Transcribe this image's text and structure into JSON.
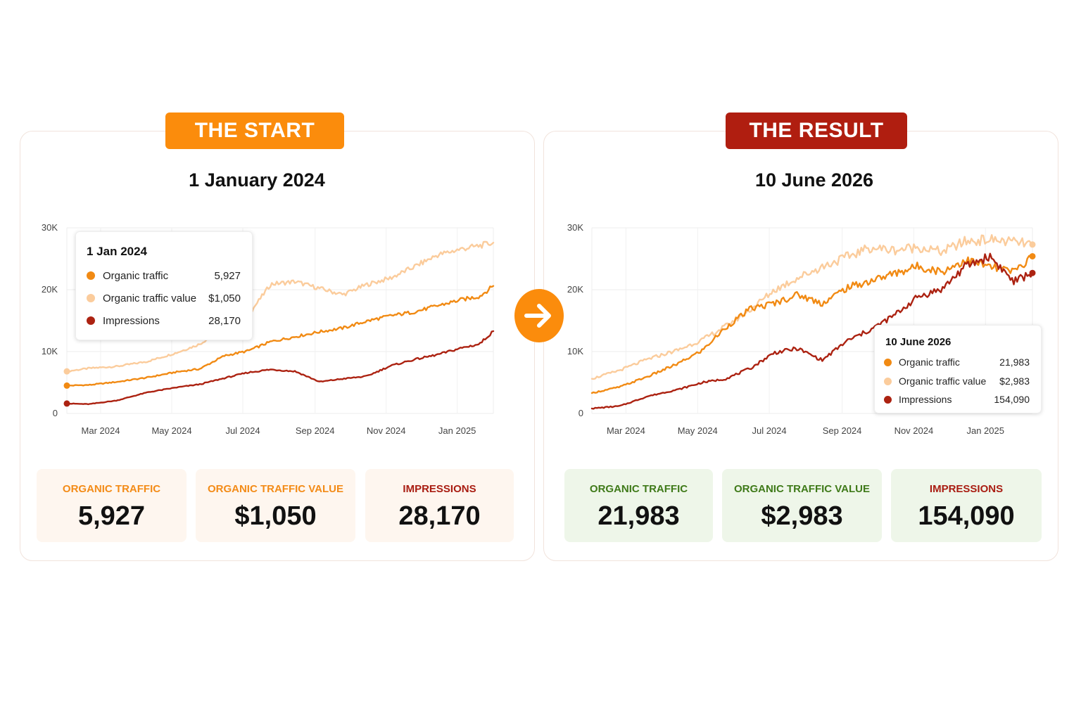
{
  "colors": {
    "organic_traffic": "#f18a13",
    "organic_traffic_value": "#fbcc9c",
    "impressions": "#ac2211",
    "start_accent": "#fb8c0c",
    "result_accent": "#b01e10",
    "start_label": "#f38b17",
    "start_impressions_label": "#a91d12",
    "result_label": "#3f7a19",
    "result_impressions_label": "#a91d12"
  },
  "start": {
    "banner": "THE START",
    "title": "1 January 2024",
    "tooltip": {
      "date": "1 Jan 2024",
      "rows": [
        {
          "label": "Organic traffic",
          "value": "5,927"
        },
        {
          "label": "Organic traffic value",
          "value": "$1,050"
        },
        {
          "label": "Impressions",
          "value": "28,170"
        }
      ]
    },
    "stats": [
      {
        "label": "ORGANIC TRAFFIC",
        "value": "5,927"
      },
      {
        "label": "ORGANIC TRAFFIC VALUE",
        "value": "$1,050"
      },
      {
        "label": "IMPRESSIONS",
        "value": "28,170"
      }
    ]
  },
  "result": {
    "banner": "THE RESULT",
    "title": "10 June 2026",
    "tooltip": {
      "date": "10 June 2026",
      "rows": [
        {
          "label": "Organic traffic",
          "value": "21,983"
        },
        {
          "label": "Organic traffic value",
          "value": "$2,983"
        },
        {
          "label": "Impressions",
          "value": "154,090"
        }
      ]
    },
    "stats": [
      {
        "label": "ORGANIC TRAFFIC",
        "value": "21,983"
      },
      {
        "label": "ORGANIC TRAFFIC VALUE",
        "value": "$2,983"
      },
      {
        "label": "IMPRESSIONS",
        "value": "154,090"
      }
    ]
  },
  "arrow_icon": "arrow-right-icon",
  "chart_data": [
    {
      "type": "line",
      "title": "",
      "xlabel": "",
      "ylabel": "",
      "x_range": [
        "2024-02-01",
        "2025-02-01"
      ],
      "ylim": [
        0,
        30000
      ],
      "y_ticks": [
        0,
        10000,
        20000,
        30000
      ],
      "y_tick_labels": [
        "0",
        "10K",
        "20K",
        "30K"
      ],
      "x_ticks": [
        "2024-03-01",
        "2024-05-01",
        "2024-07-01",
        "2024-09-01",
        "2024-11-01",
        "2025-01-01"
      ],
      "x_tick_labels": [
        "Mar 2024",
        "May 2024",
        "Jul 2024",
        "Sep 2024",
        "Nov 2024",
        "Jan 2025"
      ],
      "grid": true,
      "series": [
        {
          "key": "organic_traffic_value",
          "x": [
            "2024-02-01",
            "2024-02-20",
            "2024-03-15",
            "2024-04-10",
            "2024-05-05",
            "2024-05-25",
            "2024-06-15",
            "2024-07-05",
            "2024-07-25",
            "2024-08-15",
            "2024-09-05",
            "2024-09-25",
            "2024-10-15",
            "2024-11-05",
            "2024-11-25",
            "2024-12-15",
            "2025-01-05",
            "2025-01-20",
            "2025-02-01"
          ],
          "y": [
            6800,
            7300,
            7600,
            8400,
            9800,
            11200,
            13800,
            15700,
            20900,
            21300,
            20200,
            19200,
            20800,
            21900,
            23700,
            25600,
            26600,
            27100,
            27600
          ]
        },
        {
          "key": "organic_traffic",
          "x": [
            "2024-02-01",
            "2024-02-20",
            "2024-03-15",
            "2024-04-10",
            "2024-05-05",
            "2024-05-25",
            "2024-06-15",
            "2024-07-05",
            "2024-07-25",
            "2024-08-15",
            "2024-09-05",
            "2024-09-25",
            "2024-10-15",
            "2024-11-05",
            "2024-11-25",
            "2024-12-15",
            "2025-01-05",
            "2025-01-20",
            "2025-02-01"
          ],
          "y": [
            4500,
            4600,
            5100,
            5800,
            6700,
            7200,
            9300,
            10100,
            11600,
            12400,
            13200,
            13800,
            14900,
            15800,
            16400,
            17400,
            18400,
            18900,
            20600
          ]
        },
        {
          "key": "impressions",
          "x": [
            "2024-02-01",
            "2024-02-20",
            "2024-03-15",
            "2024-04-10",
            "2024-05-05",
            "2024-05-25",
            "2024-06-15",
            "2024-07-05",
            "2024-07-25",
            "2024-08-15",
            "2024-09-05",
            "2024-09-25",
            "2024-10-15",
            "2024-11-05",
            "2024-11-25",
            "2024-12-15",
            "2025-01-05",
            "2025-01-20",
            "2025-02-01"
          ],
          "y": [
            1600,
            1500,
            2100,
            3400,
            4200,
            4700,
            5700,
            6600,
            7100,
            6800,
            5100,
            5600,
            6000,
            7700,
            8700,
            9500,
            10600,
            11200,
            13300
          ]
        }
      ]
    },
    {
      "type": "line",
      "title": "",
      "xlabel": "",
      "ylabel": "",
      "x_range": [
        "2024-02-01",
        "2025-02-10"
      ],
      "ylim": [
        0,
        30000
      ],
      "y_ticks": [
        0,
        10000,
        20000,
        30000
      ],
      "y_tick_labels": [
        "0",
        "10K",
        "20K",
        "30K"
      ],
      "x_ticks": [
        "2024-03-01",
        "2024-05-01",
        "2024-07-01",
        "2024-09-01",
        "2024-11-01",
        "2025-01-01"
      ],
      "x_tick_labels": [
        "Mar 2024",
        "May 2024",
        "Jul 2024",
        "Sep 2024",
        "Nov 2024",
        "Jan 2025"
      ],
      "grid": true,
      "series": [
        {
          "key": "organic_traffic_value",
          "x": [
            "2024-02-01",
            "2024-02-25",
            "2024-03-20",
            "2024-04-15",
            "2024-05-05",
            "2024-05-25",
            "2024-06-15",
            "2024-07-05",
            "2024-07-25",
            "2024-08-15",
            "2024-09-05",
            "2024-09-25",
            "2024-10-15",
            "2024-11-05",
            "2024-11-25",
            "2024-12-15",
            "2025-01-05",
            "2025-01-25",
            "2025-02-10"
          ],
          "y": [
            5600,
            7000,
            8800,
            10300,
            11900,
            14100,
            16800,
            19900,
            21900,
            23700,
            25300,
            26800,
            26400,
            26900,
            26100,
            27800,
            28100,
            27700,
            27300
          ]
        },
        {
          "key": "organic_traffic",
          "x": [
            "2024-02-01",
            "2024-02-25",
            "2024-03-20",
            "2024-04-15",
            "2024-05-05",
            "2024-05-25",
            "2024-06-15",
            "2024-07-05",
            "2024-07-25",
            "2024-08-15",
            "2024-09-05",
            "2024-09-25",
            "2024-10-15",
            "2024-11-05",
            "2024-11-25",
            "2024-12-15",
            "2025-01-05",
            "2025-01-25",
            "2025-02-10"
          ],
          "y": [
            3300,
            4300,
            6000,
            8100,
            10200,
            13900,
            16900,
            17800,
            19200,
            17800,
            20300,
            21400,
            22600,
            23800,
            22900,
            24800,
            23700,
            22900,
            25400
          ]
        },
        {
          "key": "impressions",
          "x": [
            "2024-02-01",
            "2024-02-25",
            "2024-03-20",
            "2024-04-15",
            "2024-05-05",
            "2024-05-25",
            "2024-06-15",
            "2024-07-05",
            "2024-07-25",
            "2024-08-15",
            "2024-09-05",
            "2024-09-25",
            "2024-10-15",
            "2024-11-05",
            "2024-11-25",
            "2024-12-15",
            "2025-01-05",
            "2025-01-25",
            "2025-02-10"
          ],
          "y": [
            800,
            1200,
            2800,
            3900,
            5000,
            5600,
            7300,
            9800,
            10500,
            8600,
            11700,
            13500,
            15800,
            18900,
            20100,
            23800,
            25400,
            21300,
            22700
          ]
        }
      ]
    }
  ]
}
